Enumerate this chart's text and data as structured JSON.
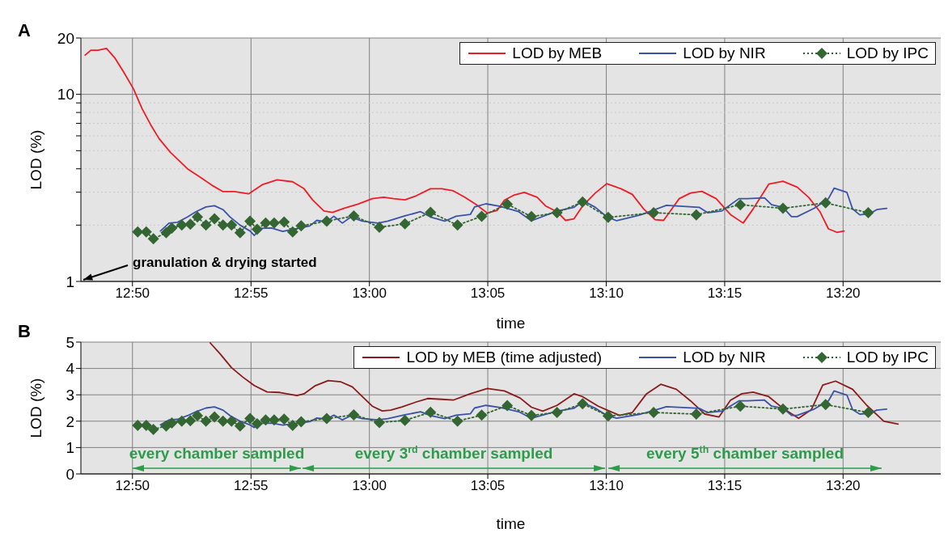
{
  "chart_data": [
    {
      "type": "line",
      "title": "A",
      "xlabel": "time",
      "ylabel": "LOD (%)",
      "log": true,
      "grid": true,
      "legend": "top right",
      "xlim": [
        12.797,
        13.402
      ],
      "xticks": [
        {
          "value": 12.8333,
          "label": "12:50"
        },
        {
          "value": 12.9167,
          "label": "12:55"
        },
        {
          "value": 13.0,
          "label": "13:00"
        },
        {
          "value": 13.0833,
          "label": "13:05"
        },
        {
          "value": 13.1667,
          "label": "13:10"
        },
        {
          "value": 13.25,
          "label": "13:15"
        },
        {
          "value": 13.3333,
          "label": "13:20"
        }
      ],
      "ylim": [
        1,
        20
      ],
      "yticks": [
        1,
        {
          "value": 2,
          "label": null
        },
        {
          "value": 3,
          "label": null
        },
        {
          "value": 4,
          "label": null
        },
        {
          "value": 5,
          "label": null
        },
        {
          "value": 6,
          "label": null
        },
        {
          "value": 7,
          "label": null
        },
        {
          "value": 8,
          "label": null
        },
        {
          "value": 9,
          "label": null
        },
        10,
        20
      ],
      "annotations": [
        "granulation & drying started"
      ],
      "series": [
        {
          "name": "LOD by MEB",
          "color": "#ee1c25",
          "x": [
            12.8,
            12.804,
            12.809,
            12.815,
            12.821,
            12.827,
            12.834,
            12.84,
            12.846,
            12.852,
            12.86,
            12.872,
            12.88,
            12.89,
            12.897,
            12.905,
            12.915,
            12.925,
            12.935,
            12.946,
            12.954,
            12.96,
            12.968,
            12.974,
            12.982,
            12.992,
            13.002,
            13.01,
            13.017,
            13.025,
            13.033,
            13.043,
            13.051,
            13.059,
            13.067,
            13.075,
            13.083,
            13.09,
            13.095,
            13.102,
            13.109,
            13.118,
            13.124,
            13.132,
            13.138,
            13.144,
            13.15,
            13.159,
            13.167,
            13.177,
            13.185,
            13.193,
            13.201,
            13.207,
            13.218,
            13.226,
            13.234,
            13.244,
            13.254,
            13.263,
            13.27,
            13.281,
            13.291,
            13.301,
            13.309,
            13.317,
            13.323,
            13.329,
            13.334
          ],
          "values": [
            16.2,
            17.2,
            17.2,
            17.6,
            15.6,
            13.2,
            10.7,
            8.4,
            6.9,
            5.8,
            4.9,
            4.0,
            3.65,
            3.24,
            3.02,
            3.02,
            2.94,
            3.3,
            3.49,
            3.41,
            3.13,
            2.73,
            2.38,
            2.34,
            2.46,
            2.59,
            2.77,
            2.82,
            2.77,
            2.73,
            2.87,
            3.13,
            3.13,
            3.05,
            2.82,
            2.58,
            2.32,
            2.4,
            2.72,
            2.9,
            2.99,
            2.82,
            2.53,
            2.36,
            2.12,
            2.16,
            2.53,
            2.97,
            3.33,
            3.13,
            2.92,
            2.44,
            2.14,
            2.12,
            2.77,
            2.97,
            3.03,
            2.77,
            2.28,
            2.05,
            2.44,
            3.31,
            3.43,
            3.19,
            2.82,
            2.36,
            1.91,
            1.83,
            1.86
          ]
        },
        {
          "name": "LOD by NIR",
          "color": "#3a52a8",
          "x": [
            12.853,
            12.859,
            12.865,
            12.872,
            12.878,
            12.885,
            12.891,
            12.897,
            12.902,
            12.909,
            12.916,
            12.919,
            12.923,
            12.931,
            12.939,
            12.946,
            12.958,
            12.963,
            12.97,
            12.975,
            12.981,
            12.987,
            12.995,
            13.006,
            13.013,
            13.025,
            13.036,
            13.043,
            13.053,
            13.061,
            13.071,
            13.074,
            13.082,
            13.092,
            13.105,
            13.114,
            13.132,
            13.144,
            13.15,
            13.159,
            13.167,
            13.174,
            13.191,
            13.201,
            13.209,
            13.232,
            13.238,
            13.248,
            13.26,
            13.266,
            13.278,
            13.283,
            13.291,
            13.297,
            13.301,
            13.313,
            13.323,
            13.327,
            13.336,
            13.34,
            13.345,
            13.352,
            13.357,
            13.364
          ],
          "values": [
            1.86,
            2.05,
            2.07,
            2.21,
            2.36,
            2.5,
            2.54,
            2.42,
            2.21,
            2.0,
            1.86,
            1.76,
            1.92,
            1.93,
            1.85,
            1.9,
            1.98,
            2.12,
            2.08,
            2.23,
            2.05,
            2.21,
            2.1,
            2.05,
            2.1,
            2.24,
            2.36,
            2.21,
            2.1,
            2.23,
            2.28,
            2.5,
            2.6,
            2.52,
            2.36,
            2.11,
            2.38,
            2.49,
            2.71,
            2.49,
            2.22,
            2.11,
            2.27,
            2.42,
            2.55,
            2.49,
            2.33,
            2.38,
            2.77,
            2.77,
            2.8,
            2.57,
            2.49,
            2.22,
            2.22,
            2.46,
            2.77,
            3.15,
            2.99,
            2.44,
            2.27,
            2.3,
            2.42,
            2.46
          ]
        },
        {
          "name": "LOD by IPC",
          "color": "#336633",
          "marker": "diamond",
          "line_style": "dotted",
          "x": [
            12.837,
            12.843,
            12.848,
            12.857,
            12.861,
            12.868,
            12.874,
            12.879,
            12.885,
            12.891,
            12.897,
            12.903,
            12.909,
            12.916,
            12.921,
            12.927,
            12.933,
            12.94,
            12.946,
            12.952,
            12.97,
            12.989,
            13.007,
            13.025,
            13.043,
            13.062,
            13.079,
            13.097,
            13.114,
            13.132,
            13.15,
            13.168,
            13.2,
            13.23,
            13.261,
            13.291,
            13.321,
            13.351
          ],
          "values": [
            1.84,
            1.84,
            1.69,
            1.82,
            1.93,
            2.0,
            2.02,
            2.21,
            2.0,
            2.16,
            2.0,
            2.0,
            1.82,
            2.1,
            1.9,
            2.05,
            2.05,
            2.08,
            1.84,
            1.98,
            2.1,
            2.24,
            1.95,
            2.03,
            2.34,
            2.0,
            2.23,
            2.59,
            2.22,
            2.33,
            2.66,
            2.2,
            2.33,
            2.27,
            2.57,
            2.46,
            2.63,
            2.33
          ]
        }
      ]
    },
    {
      "type": "line",
      "title": "B",
      "xlabel": "time",
      "ylabel": "LOD (%)",
      "grid": true,
      "legend": "top right",
      "xlim": [
        12.797,
        13.402
      ],
      "xticks": [
        {
          "value": 12.8333,
          "label": "12:50"
        },
        {
          "value": 12.9167,
          "label": "12:55"
        },
        {
          "value": 13.0,
          "label": "13:00"
        },
        {
          "value": 13.0833,
          "label": "13:05"
        },
        {
          "value": 13.1667,
          "label": "13:10"
        },
        {
          "value": 13.25,
          "label": "13:15"
        },
        {
          "value": 13.3333,
          "label": "13:20"
        }
      ],
      "ylim": [
        0,
        5
      ],
      "yticks": [
        0,
        1,
        2,
        3,
        4,
        5
      ],
      "annotations": [
        "every chamber sampled",
        "every 3$^{rd}$ chamber sampled",
        "every 5$^{th}$ chamber sampled"
      ],
      "series": [
        {
          "name": "LOD by MEB (time adjusted)",
          "color": "#8b1a1a",
          "x": [
            12.888,
            12.895,
            12.903,
            12.911,
            12.919,
            12.928,
            12.937,
            12.949,
            12.954,
            12.962,
            12.971,
            12.98,
            12.988,
            12.994,
            13.002,
            13.009,
            13.015,
            13.023,
            13.033,
            13.041,
            13.051,
            13.059,
            13.071,
            13.083,
            13.095,
            13.106,
            13.114,
            13.122,
            13.132,
            13.144,
            13.15,
            13.161,
            13.169,
            13.176,
            13.185,
            13.195,
            13.205,
            13.216,
            13.226,
            13.236,
            13.246,
            13.254,
            13.262,
            13.27,
            13.281,
            13.291,
            13.302,
            13.311,
            13.319,
            13.328,
            13.34,
            13.35,
            13.362,
            13.372
          ],
          "values": [
            4.97,
            4.55,
            4.03,
            3.67,
            3.35,
            3.11,
            3.09,
            2.97,
            3.04,
            3.35,
            3.54,
            3.49,
            3.3,
            2.99,
            2.57,
            2.39,
            2.42,
            2.54,
            2.73,
            2.86,
            2.83,
            2.8,
            3.04,
            3.24,
            3.15,
            2.88,
            2.53,
            2.38,
            2.6,
            3.04,
            2.93,
            2.57,
            2.38,
            2.22,
            2.33,
            3.04,
            3.4,
            3.21,
            2.77,
            2.27,
            2.16,
            2.79,
            3.04,
            3.1,
            2.93,
            2.49,
            2.11,
            2.44,
            3.37,
            3.52,
            3.21,
            2.6,
            2.0,
            1.89
          ]
        },
        {
          "name": "LOD by NIR",
          "color": "#3a52a8",
          "x": [
            12.853,
            12.859,
            12.865,
            12.872,
            12.878,
            12.885,
            12.891,
            12.897,
            12.902,
            12.909,
            12.916,
            12.919,
            12.923,
            12.931,
            12.939,
            12.946,
            12.958,
            12.963,
            12.97,
            12.975,
            12.981,
            12.987,
            12.995,
            13.006,
            13.013,
            13.025,
            13.036,
            13.043,
            13.053,
            13.061,
            13.071,
            13.074,
            13.082,
            13.092,
            13.105,
            13.114,
            13.132,
            13.144,
            13.15,
            13.159,
            13.167,
            13.174,
            13.191,
            13.201,
            13.209,
            13.232,
            13.238,
            13.248,
            13.26,
            13.266,
            13.278,
            13.283,
            13.291,
            13.297,
            13.301,
            13.313,
            13.323,
            13.327,
            13.336,
            13.34,
            13.345,
            13.352,
            13.357,
            13.364
          ],
          "values": [
            1.86,
            2.05,
            2.07,
            2.21,
            2.36,
            2.5,
            2.54,
            2.42,
            2.21,
            2.0,
            1.86,
            1.76,
            1.92,
            1.93,
            1.85,
            1.9,
            1.98,
            2.12,
            2.08,
            2.23,
            2.05,
            2.21,
            2.1,
            2.05,
            2.1,
            2.24,
            2.36,
            2.21,
            2.1,
            2.23,
            2.28,
            2.5,
            2.6,
            2.52,
            2.36,
            2.11,
            2.38,
            2.49,
            2.71,
            2.49,
            2.22,
            2.11,
            2.27,
            2.42,
            2.55,
            2.49,
            2.33,
            2.38,
            2.77,
            2.77,
            2.8,
            2.57,
            2.49,
            2.22,
            2.22,
            2.46,
            2.77,
            3.15,
            2.99,
            2.44,
            2.27,
            2.3,
            2.42,
            2.46
          ]
        },
        {
          "name": "LOD by IPC",
          "color": "#336633",
          "marker": "diamond",
          "line_style": "dotted",
          "x": [
            12.837,
            12.843,
            12.848,
            12.857,
            12.861,
            12.868,
            12.874,
            12.879,
            12.885,
            12.891,
            12.897,
            12.903,
            12.909,
            12.916,
            12.921,
            12.927,
            12.933,
            12.94,
            12.946,
            12.952,
            12.97,
            12.989,
            13.007,
            13.025,
            13.043,
            13.062,
            13.079,
            13.097,
            13.114,
            13.132,
            13.15,
            13.168,
            13.2,
            13.23,
            13.261,
            13.291,
            13.321,
            13.351
          ],
          "values": [
            1.84,
            1.84,
            1.69,
            1.82,
            1.93,
            2.0,
            2.02,
            2.21,
            2.0,
            2.16,
            2.0,
            2.0,
            1.82,
            2.1,
            1.9,
            2.05,
            2.05,
            2.08,
            1.84,
            1.98,
            2.1,
            2.24,
            1.95,
            2.03,
            2.34,
            2.0,
            2.23,
            2.59,
            2.22,
            2.33,
            2.66,
            2.2,
            2.33,
            2.27,
            2.57,
            2.46,
            2.63,
            2.33
          ]
        }
      ]
    }
  ]
}
